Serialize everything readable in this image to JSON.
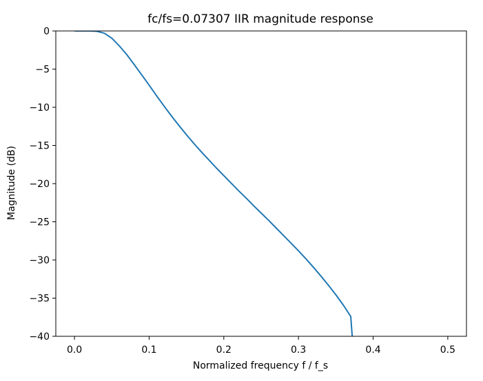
{
  "chart_data": {
    "type": "line",
    "title": "fc/fs=0.07307 IIR magnitude response",
    "xlabel": "Normalized frequency  f / f_s",
    "ylabel": "Magnitude (dB)",
    "xlim": [
      -0.025,
      0.525
    ],
    "ylim": [
      -40,
      0
    ],
    "x_ticks": [
      0.0,
      0.1,
      0.2,
      0.3,
      0.4,
      0.5
    ],
    "x_tick_labels": [
      "0.0",
      "0.1",
      "0.2",
      "0.3",
      "0.4",
      "0.5"
    ],
    "y_ticks": [
      0,
      -5,
      -10,
      -15,
      -20,
      -25,
      -30,
      -35,
      -40
    ],
    "y_tick_labels": [
      "0",
      "−5",
      "−10",
      "−15",
      "−20",
      "−25",
      "−30",
      "−35",
      "−40"
    ],
    "grid": false,
    "series": [
      {
        "color": "#1f77b4",
        "x": [
          0.0,
          0.01,
          0.02,
          0.03,
          0.04,
          0.05,
          0.06,
          0.07,
          0.08,
          0.09,
          0.1,
          0.11,
          0.12,
          0.13,
          0.14,
          0.15,
          0.16,
          0.17,
          0.18,
          0.19,
          0.2,
          0.21,
          0.22,
          0.23,
          0.24,
          0.25,
          0.26,
          0.27,
          0.28,
          0.29,
          0.3,
          0.31,
          0.32,
          0.33,
          0.34,
          0.35,
          0.36,
          0.37,
          0.372
        ],
        "y": [
          0.0,
          0.0,
          0.0,
          -0.05,
          -0.3,
          -0.95,
          -1.95,
          -3.1,
          -4.4,
          -5.75,
          -7.1,
          -8.5,
          -9.85,
          -11.15,
          -12.4,
          -13.6,
          -14.75,
          -15.85,
          -16.9,
          -17.95,
          -18.95,
          -19.95,
          -20.95,
          -21.9,
          -22.9,
          -23.85,
          -24.8,
          -25.8,
          -26.8,
          -27.8,
          -28.8,
          -29.85,
          -30.95,
          -32.1,
          -33.3,
          -34.55,
          -35.9,
          -37.4,
          -40.0
        ]
      }
    ]
  }
}
